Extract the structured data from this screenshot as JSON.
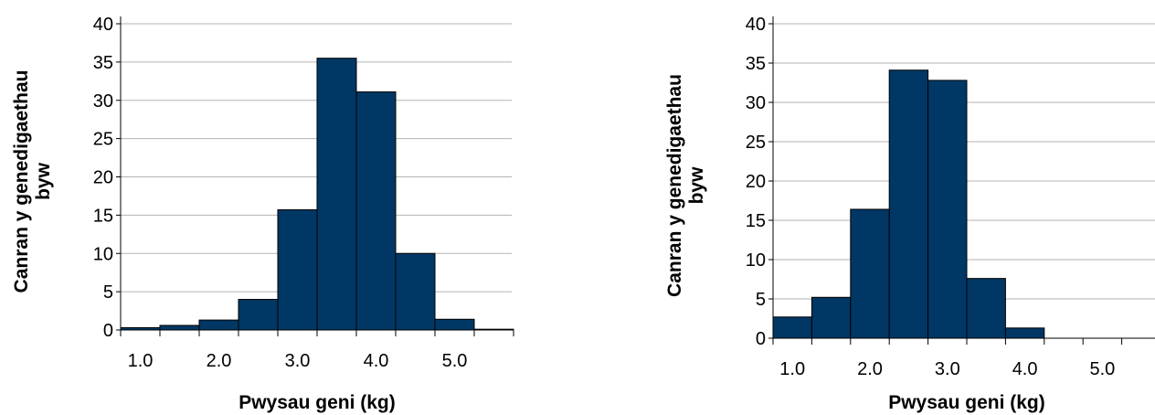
{
  "chart_data": [
    {
      "type": "bar",
      "xlabel": "Pwysau geni (kg)",
      "ylabel_lines": [
        "Canran y genedigaethau",
        "byw"
      ],
      "ylim": [
        0,
        40
      ],
      "yticks": [
        "0",
        "5",
        "10",
        "15",
        "20",
        "25",
        "30",
        "35",
        "40"
      ],
      "xticks": [
        "1.0",
        "2.0",
        "3.0",
        "4.0",
        "5.0"
      ],
      "bins": [
        "0.5–1.0",
        "1.0–1.5",
        "1.5–2.0",
        "2.0–2.5",
        "2.5–3.0",
        "3.0–3.5",
        "3.5–4.0",
        "4.0–4.5",
        "4.5–5.0",
        "5.0–5.5"
      ],
      "values": [
        0.3,
        0.6,
        1.3,
        4.0,
        15.7,
        35.5,
        31.1,
        10.0,
        1.4,
        0.1
      ],
      "grid": true,
      "bar_color": "#003764"
    },
    {
      "type": "bar",
      "xlabel": "Pwysau geni (kg)",
      "ylabel_lines": [
        "Canran y genedigaethau",
        "byw"
      ],
      "ylim": [
        0,
        40
      ],
      "yticks": [
        "0",
        "5",
        "10",
        "15",
        "20",
        "25",
        "30",
        "35",
        "40"
      ],
      "xticks": [
        "1.0",
        "2.0",
        "3.0",
        "4.0",
        "5.0"
      ],
      "bins": [
        "0.5–1.0",
        "1.0–1.5",
        "1.5–2.0",
        "2.0–2.5",
        "2.5–3.0",
        "3.0–3.5",
        "3.5–4.0",
        "4.0–4.5",
        "4.5–5.0",
        "5.0–5.5"
      ],
      "values": [
        2.7,
        5.2,
        16.4,
        34.1,
        32.8,
        7.6,
        1.3,
        0,
        0,
        0
      ],
      "grid": true,
      "bar_color": "#003764"
    }
  ]
}
